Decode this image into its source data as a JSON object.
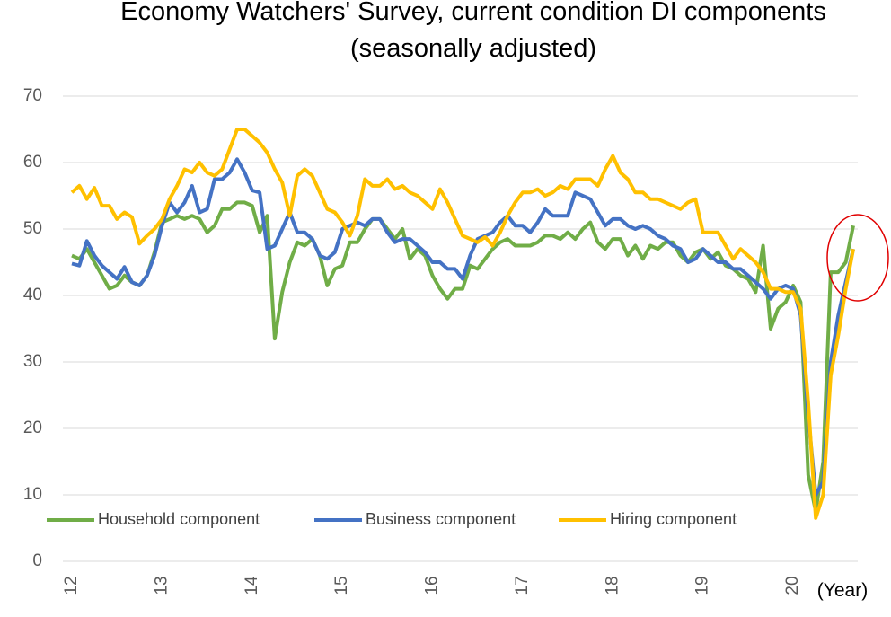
{
  "chart_data": {
    "type": "line",
    "title": "Economy Watchers' Survey, current condition DI components",
    "subtitle": "(seasonally adjusted)",
    "x_label": "(Year)",
    "categories": [
      "12",
      null,
      null,
      null,
      null,
      null,
      null,
      null,
      null,
      null,
      null,
      null,
      "13",
      null,
      null,
      null,
      null,
      null,
      null,
      null,
      null,
      null,
      null,
      null,
      "14",
      null,
      null,
      null,
      null,
      null,
      null,
      null,
      null,
      null,
      null,
      null,
      "15",
      null,
      null,
      null,
      null,
      null,
      null,
      null,
      null,
      null,
      null,
      null,
      "16",
      null,
      null,
      null,
      null,
      null,
      null,
      null,
      null,
      null,
      null,
      null,
      "17",
      null,
      null,
      null,
      null,
      null,
      null,
      null,
      null,
      null,
      null,
      null,
      "18",
      null,
      null,
      null,
      null,
      null,
      null,
      null,
      null,
      null,
      null,
      null,
      "19",
      null,
      null,
      null,
      null,
      null,
      null,
      null,
      null,
      null,
      null,
      null,
      "20",
      null,
      null,
      null,
      null,
      null,
      null,
      null,
      null
    ],
    "series": [
      {
        "name": "Household component",
        "color": "#70ad47",
        "values": [
          46,
          45.5,
          47,
          45,
          43,
          41,
          41.5,
          43,
          42,
          41.5,
          43,
          46.5,
          51,
          51.5,
          52,
          51.5,
          52,
          51.5,
          49.5,
          50.5,
          53,
          53,
          54,
          54,
          53.5,
          49.5,
          52,
          33.5,
          40.5,
          45,
          48,
          47.5,
          48.5,
          46,
          41.5,
          44,
          44.5,
          48,
          48,
          50,
          51.5,
          51.5,
          50,
          48.5,
          50,
          45.5,
          47,
          46,
          43,
          41,
          39.5,
          41,
          41,
          44.5,
          44,
          45.5,
          47,
          48,
          48.5,
          47.5,
          47.5,
          47.5,
          48,
          49,
          49,
          48.5,
          49.5,
          48.5,
          50,
          51,
          48,
          47,
          48.5,
          48.5,
          46,
          47.5,
          45.5,
          47.5,
          47,
          48,
          48,
          46,
          45,
          46.5,
          47,
          45.5,
          46.5,
          44.5,
          44,
          43,
          42.5,
          40.5,
          47.5,
          35,
          38,
          39,
          41.5,
          39,
          13,
          7.5,
          15,
          43.5,
          43.5,
          45,
          50.5
        ]
      },
      {
        "name": "Business component",
        "color": "#4472c4",
        "values": [
          44.8,
          44.5,
          48.2,
          46,
          44.5,
          43.5,
          42.5,
          44.3,
          42,
          41.5,
          43,
          46,
          50.5,
          54,
          52.5,
          54,
          56.5,
          52.5,
          53,
          57.5,
          57.5,
          58.5,
          60.5,
          58.5,
          55.8,
          55.5,
          47,
          47.5,
          50,
          52.5,
          49.5,
          49.5,
          48.5,
          46,
          45.5,
          46.5,
          50,
          50.5,
          51,
          50.5,
          51.5,
          51.5,
          49.5,
          48,
          48.5,
          48.5,
          47.5,
          46.5,
          45,
          45,
          44,
          44,
          42.5,
          46,
          48.5,
          49,
          49.5,
          51,
          52,
          50.5,
          50.5,
          49.5,
          51,
          53,
          52,
          52,
          52,
          55.5,
          55,
          54.5,
          52.5,
          50.5,
          51.5,
          51.5,
          50.5,
          50,
          50.5,
          50,
          49,
          48.5,
          47.5,
          47,
          45,
          45.5,
          47,
          46,
          45,
          45,
          44,
          44,
          43,
          42,
          41,
          39.5,
          41,
          41.5,
          41,
          37,
          22,
          10,
          12,
          30,
          37,
          42,
          47
        ]
      },
      {
        "name": "Hiring component",
        "color": "#ffc000",
        "values": [
          55.5,
          56.5,
          54.5,
          56.2,
          53.5,
          53.5,
          51.5,
          52.5,
          51.8,
          47.8,
          49,
          50,
          51.5,
          54.5,
          56.5,
          59,
          58.5,
          60,
          58.5,
          58,
          59,
          62,
          65,
          65,
          64,
          63,
          61.5,
          59,
          57,
          52,
          58,
          59,
          58,
          55.5,
          53,
          52.5,
          51,
          49,
          52,
          57.5,
          56.5,
          56.5,
          57.5,
          56,
          56.5,
          55.5,
          55,
          54,
          53,
          56,
          54,
          51.5,
          49,
          48.5,
          48,
          48.8,
          47.5,
          49.5,
          52,
          54,
          55.5,
          55.5,
          56,
          55,
          55.5,
          56.5,
          56,
          57.5,
          57.5,
          57.5,
          56.5,
          59,
          61,
          58.5,
          57.5,
          55.5,
          55.5,
          54.5,
          54.5,
          54,
          53.5,
          53,
          54,
          54.5,
          49.5,
          49.5,
          49.5,
          47.5,
          45.5,
          47,
          46,
          45,
          43.5,
          41,
          41,
          40.5,
          40.5,
          38,
          24,
          6.5,
          10,
          28,
          34,
          41,
          47
        ]
      }
    ],
    "ylim": [
      0,
      70
    ],
    "yticks": [
      0,
      10,
      20,
      30,
      40,
      50,
      60,
      70
    ],
    "grid": true
  }
}
